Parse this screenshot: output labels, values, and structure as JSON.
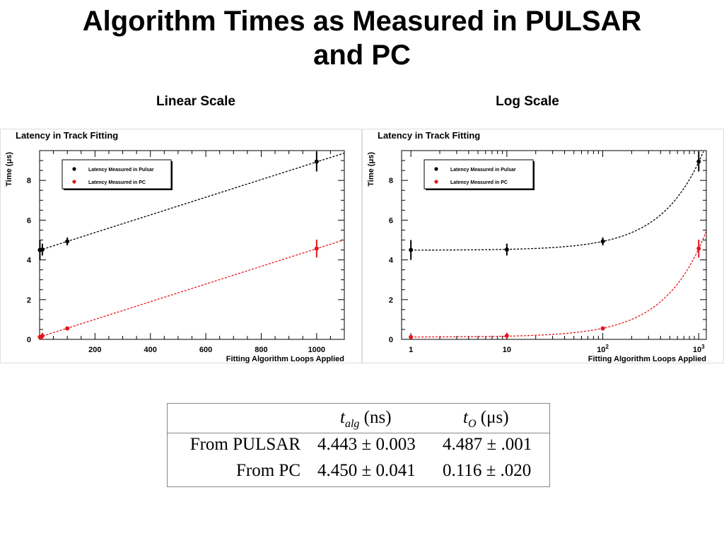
{
  "slide": {
    "title_line1": "Algorithm Times as Measured in PULSAR",
    "title_line2": "and PC",
    "left_label": "Linear Scale",
    "right_label": "Log Scale"
  },
  "chart_data": [
    {
      "type": "scatter",
      "title": "Latency in Track Fitting",
      "xlabel": "Fitting Algorithm Loops Applied",
      "ylabel": "Time (μs)",
      "xscale": "linear",
      "xlim": [
        0,
        1100
      ],
      "ylim": [
        0,
        9.5
      ],
      "xticks": [
        200,
        400,
        600,
        800,
        1000
      ],
      "yticks": [
        0,
        2,
        4,
        6,
        8
      ],
      "legend_position": "top-left",
      "series": [
        {
          "name": "Latency Measured in Pulsar",
          "color": "#000000",
          "x": [
            1,
            10,
            100,
            1000
          ],
          "y": [
            4.5,
            4.52,
            4.93,
            8.95
          ],
          "yerr": [
            0.5,
            0.3,
            0.2,
            0.5
          ],
          "fit": {
            "slope": 0.004443,
            "intercept": 4.487
          }
        },
        {
          "name": "Latency Measured in PC",
          "color": "#e8141b",
          "x": [
            1,
            10,
            100,
            1000
          ],
          "y": [
            0.12,
            0.18,
            0.55,
            4.57
          ],
          "yerr": [
            0.04,
            0.15,
            0.06,
            0.45
          ],
          "fit": {
            "slope": 0.00445,
            "intercept": 0.116
          }
        }
      ]
    },
    {
      "type": "scatter",
      "title": "Latency in Track Fitting",
      "xlabel": "Fitting Algorithm Loops Applied",
      "ylabel": "Time (μs)",
      "xscale": "log",
      "xlim": [
        0.8,
        1200
      ],
      "ylim": [
        0,
        9.5
      ],
      "xticks": [
        1,
        10,
        100,
        1000
      ],
      "xtick_labels": [
        "1",
        "10",
        "10^2",
        "10^3"
      ],
      "yticks": [
        0,
        2,
        4,
        6,
        8
      ],
      "legend_position": "top-left",
      "series": [
        {
          "name": "Latency Measured in Pulsar",
          "color": "#000000",
          "x": [
            1,
            10,
            100,
            1000
          ],
          "y": [
            4.5,
            4.52,
            4.93,
            8.95
          ],
          "yerr": [
            0.5,
            0.3,
            0.2,
            0.5
          ],
          "fit": {
            "slope": 0.004443,
            "intercept": 4.487
          }
        },
        {
          "name": "Latency Measured in PC",
          "color": "#e8141b",
          "x": [
            1,
            10,
            100,
            1000
          ],
          "y": [
            0.12,
            0.18,
            0.55,
            4.57
          ],
          "yerr": [
            0.04,
            0.15,
            0.06,
            0.45
          ],
          "fit": {
            "slope": 0.00445,
            "intercept": 0.116
          }
        }
      ]
    }
  ],
  "table": {
    "headers": [
      {
        "var": "t",
        "sub": "alg",
        "unit": " (ns)"
      },
      {
        "var": "t",
        "sub": "O",
        "unit": " (μs)"
      }
    ],
    "rows": [
      {
        "label": "From PULSAR",
        "talg": "4.443 ± 0.003",
        "to": "4.487 ± .001"
      },
      {
        "label": "From PC",
        "talg": "4.450 ± 0.041",
        "to": "0.116 ± .020"
      }
    ]
  }
}
